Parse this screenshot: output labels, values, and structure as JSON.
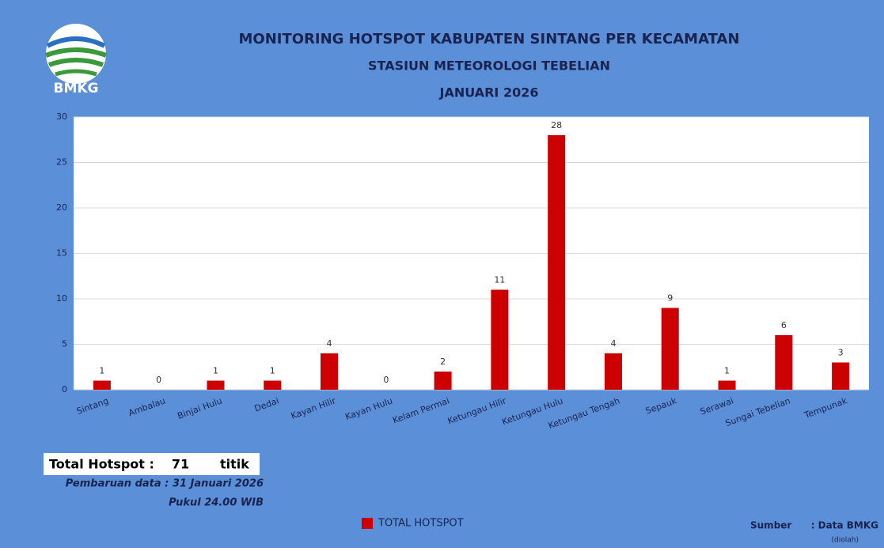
{
  "chart_data": {
    "type": "bar",
    "logo_text": "BMKG",
    "title": "MONITORING HOTSPOT KABUPATEN SINTANG PER KECAMATAN",
    "subtitle": "STASIUN METEOROLOGI TEBELIAN",
    "period": "JANUARI 2026",
    "categories": [
      "Sintang",
      "Ambalau",
      "Binjai Hulu",
      "Dedai",
      "Kayan Hilir",
      "Kayan Hulu",
      "Kelam Permai",
      "Ketungau Hilir",
      "Ketungau Hulu",
      "Ketungau Tengah",
      "Sepauk",
      "Serawai",
      "Sungai Tebelian",
      "Tempunak"
    ],
    "series": [
      {
        "name": "TOTAL HOTSPOT",
        "color": "#cc0000",
        "values": [
          1,
          0,
          1,
          1,
          4,
          0,
          2,
          11,
          28,
          4,
          9,
          1,
          6,
          3
        ]
      }
    ],
    "ylim": [
      0,
      30
    ],
    "yticks": [
      0,
      5,
      10,
      15,
      20,
      25,
      30
    ],
    "grid": true,
    "total": {
      "label": "Total Hotspot :",
      "value": 71,
      "unit": "titik"
    },
    "notes": [
      "Pembaruan data : 31 Januari 2026",
      "Pukul 24.00 WIB"
    ],
    "source": {
      "label": "Sumber",
      "value": ": Data BMKG",
      "note": "(diolah)"
    }
  }
}
